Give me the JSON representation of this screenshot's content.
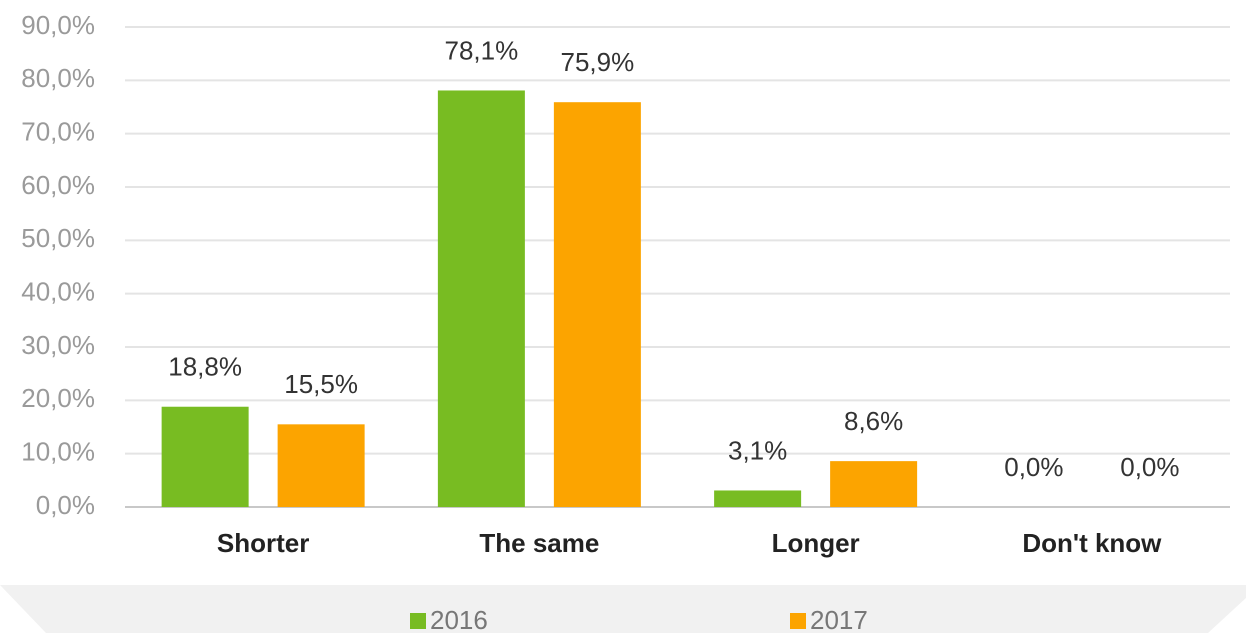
{
  "chart_data": {
    "type": "bar",
    "categories": [
      "Shorter",
      "The same",
      "Longer",
      "Don't know"
    ],
    "series": [
      {
        "name": "2016",
        "color": "#78bc22",
        "values": [
          18.8,
          78.1,
          3.1,
          0.0
        ],
        "value_labels": [
          "18,8%",
          "78,1%",
          "3,1%",
          "0,0%"
        ]
      },
      {
        "name": "2017",
        "color": "#fca400",
        "values": [
          15.5,
          75.9,
          8.6,
          0.0
        ],
        "value_labels": [
          "15,5%",
          "75,9%",
          "8,6%",
          "0,0%"
        ]
      }
    ],
    "ylim": [
      0,
      90
    ],
    "yticks": [
      {
        "value": 0,
        "label": "0,0%"
      },
      {
        "value": 10,
        "label": "10,0%"
      },
      {
        "value": 20,
        "label": "20,0%"
      },
      {
        "value": 30,
        "label": "30,0%"
      },
      {
        "value": 40,
        "label": "40,0%"
      },
      {
        "value": 50,
        "label": "50,0%"
      },
      {
        "value": 60,
        "label": "60,0%"
      },
      {
        "value": 70,
        "label": "70,0%"
      },
      {
        "value": 80,
        "label": "80,0%"
      },
      {
        "value": 90,
        "label": "90,0%"
      }
    ],
    "grid": true,
    "legend": "bottom"
  }
}
